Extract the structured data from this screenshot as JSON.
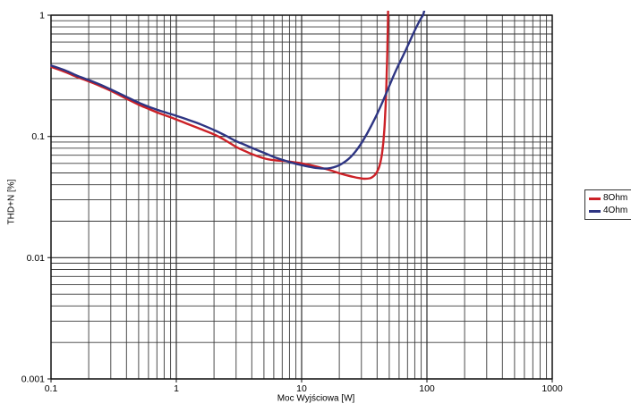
{
  "colors": {
    "background": "#ffffff",
    "grid_minor": "#3a3a3a",
    "grid_major": "#2e2e2e",
    "plot_border": "#111111",
    "text": "#000000",
    "series_8ohm": "#cc2127",
    "series_4ohm": "#2e3583"
  },
  "chart_data": {
    "type": "line",
    "title": "",
    "xlabel": "Moc Wyjściowa [W]",
    "ylabel": "THD+N [%]",
    "xscale": "log",
    "yscale": "log",
    "xlim": [
      0.1,
      1000
    ],
    "ylim": [
      0.001,
      1
    ],
    "xticks": [
      0.1,
      1,
      10,
      100,
      1000
    ],
    "xtick_labels": [
      "0.1",
      "1",
      "10",
      "100",
      "1000"
    ],
    "yticks": [
      1,
      0.1,
      0.01,
      0.001
    ],
    "ytick_labels": [
      "1",
      "0.1",
      "0.01",
      "0.001"
    ],
    "grid": {
      "major": true,
      "minor": true,
      "both_axes": true
    },
    "legend_position": "right-outside-middle",
    "series": [
      {
        "name": "8Ohm",
        "color": "#cc2127",
        "points": [
          [
            0.1,
            0.375
          ],
          [
            0.13,
            0.34
          ],
          [
            0.16,
            0.31
          ],
          [
            0.2,
            0.285
          ],
          [
            0.25,
            0.259
          ],
          [
            0.3,
            0.238
          ],
          [
            0.4,
            0.205
          ],
          [
            0.5,
            0.183
          ],
          [
            0.6,
            0.169
          ],
          [
            0.7,
            0.158
          ],
          [
            0.85,
            0.147
          ],
          [
            1,
            0.138
          ],
          [
            1.2,
            0.128
          ],
          [
            1.5,
            0.117
          ],
          [
            2,
            0.104
          ],
          [
            2.5,
            0.092
          ],
          [
            3,
            0.082
          ],
          [
            3.5,
            0.076
          ],
          [
            4,
            0.0715
          ],
          [
            5,
            0.066
          ],
          [
            6,
            0.0637
          ],
          [
            7,
            0.0628
          ],
          [
            8,
            0.062
          ],
          [
            9,
            0.061
          ],
          [
            10,
            0.06
          ],
          [
            12,
            0.0578
          ],
          [
            14,
            0.0555
          ],
          [
            17,
            0.0525
          ],
          [
            20,
            0.0497
          ],
          [
            23,
            0.0478
          ],
          [
            26,
            0.0463
          ],
          [
            29,
            0.0453
          ],
          [
            32,
            0.0448
          ],
          [
            35,
            0.0452
          ],
          [
            37,
            0.0465
          ],
          [
            39,
            0.049
          ],
          [
            41,
            0.054
          ],
          [
            42.5,
            0.061
          ],
          [
            43.8,
            0.072
          ],
          [
            44.8,
            0.088
          ],
          [
            45.7,
            0.113
          ],
          [
            46.5,
            0.155
          ],
          [
            47.2,
            0.225
          ],
          [
            47.8,
            0.34
          ],
          [
            48.3,
            0.52
          ],
          [
            48.7,
            0.78
          ],
          [
            49,
            1.08
          ]
        ]
      },
      {
        "name": "4Ohm",
        "color": "#2e3583",
        "points": [
          [
            0.1,
            0.385
          ],
          [
            0.13,
            0.35
          ],
          [
            0.16,
            0.318
          ],
          [
            0.2,
            0.292
          ],
          [
            0.25,
            0.266
          ],
          [
            0.3,
            0.244
          ],
          [
            0.4,
            0.212
          ],
          [
            0.5,
            0.19
          ],
          [
            0.6,
            0.176
          ],
          [
            0.7,
            0.166
          ],
          [
            0.85,
            0.156
          ],
          [
            1,
            0.148
          ],
          [
            1.2,
            0.139
          ],
          [
            1.5,
            0.128
          ],
          [
            2,
            0.113
          ],
          [
            2.5,
            0.101
          ],
          [
            3,
            0.0915
          ],
          [
            3.5,
            0.0855
          ],
          [
            4,
            0.0805
          ],
          [
            5,
            0.0732
          ],
          [
            6,
            0.0678
          ],
          [
            7,
            0.0642
          ],
          [
            8,
            0.0615
          ],
          [
            9,
            0.0595
          ],
          [
            10,
            0.058
          ],
          [
            11.5,
            0.0562
          ],
          [
            13,
            0.055
          ],
          [
            15,
            0.0543
          ],
          [
            17,
            0.0549
          ],
          [
            19,
            0.0567
          ],
          [
            21,
            0.0597
          ],
          [
            24,
            0.066
          ],
          [
            27,
            0.0755
          ],
          [
            30,
            0.088
          ],
          [
            33,
            0.104
          ],
          [
            36,
            0.123
          ],
          [
            40,
            0.153
          ],
          [
            44,
            0.19
          ],
          [
            48,
            0.235
          ],
          [
            53,
            0.3
          ],
          [
            58,
            0.37
          ],
          [
            63,
            0.44
          ],
          [
            68,
            0.52
          ],
          [
            73,
            0.61
          ],
          [
            78,
            0.71
          ],
          [
            84,
            0.83
          ],
          [
            89,
            0.93
          ],
          [
            93,
            1.0
          ],
          [
            95,
            1.08
          ]
        ]
      }
    ]
  }
}
